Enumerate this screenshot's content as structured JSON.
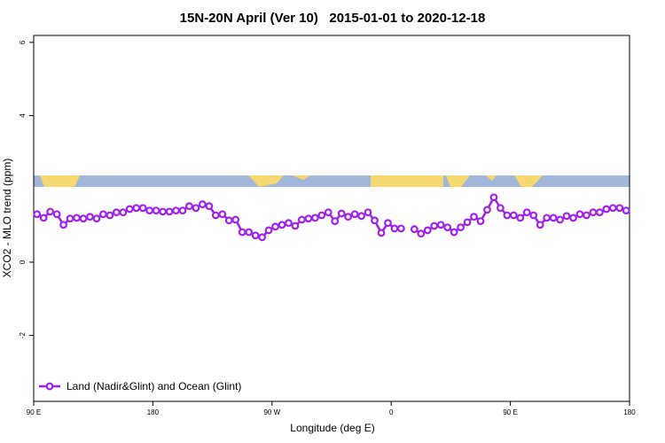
{
  "chart_data": {
    "type": "line",
    "title": "15N-20N April (Ver 10)   2015-01-01 to 2020-12-18",
    "x_label": "Longitude (deg E)",
    "y_label": "XCO2 - MLO trend (ppm)",
    "xlim": [
      90,
      540
    ],
    "ylim": [
      -3.8,
      6.19
    ],
    "xticks": [
      {
        "value": 90,
        "label": "90 E"
      },
      180,
      {
        "value": 270,
        "label": "90 W"
      },
      {
        "value": 360,
        "label": "0"
      },
      {
        "value": 450,
        "label": "90 E"
      },
      {
        "value": 540,
        "label": "180"
      }
    ],
    "yticks": [
      -2,
      0,
      4,
      6
    ],
    "legend_position": "bottom-left",
    "x": [
      92.5,
      97.5,
      102.5,
      107.5,
      112.5,
      117.5,
      122.5,
      127.5,
      132.5,
      137.5,
      142.5,
      147.5,
      152.5,
      157.5,
      162.5,
      167.5,
      172.5,
      177.5,
      182.5,
      187.5,
      192.5,
      197.5,
      202.5,
      207.5,
      212.5,
      217.5,
      222.5,
      227.5,
      232.5,
      237.5,
      242.5,
      247.5,
      252.5,
      257.5,
      262.5,
      267.5,
      272.5,
      277.5,
      282.5,
      287.5,
      292.5,
      297.5,
      302.5,
      307.5,
      312.5,
      317.5,
      322.5,
      327.5,
      332.5,
      337.5,
      342.5,
      347.5,
      352.5,
      357.5,
      362.5,
      367.5,
      372.5,
      377.5,
      382.5,
      387.5,
      392.5,
      397.5,
      402.5,
      407.5,
      412.5,
      417.5,
      422.5,
      427.5,
      432.5,
      437.5,
      442.5,
      447.5,
      452.5,
      457.5,
      462.5,
      467.5,
      472.5,
      477.5,
      482.5,
      487.5,
      492.5,
      497.5,
      502.5,
      507.5,
      512.5,
      517.5,
      522.5,
      527.5,
      532.5,
      537.5
    ],
    "series": [
      {
        "name": "Land (Nadir&Glint) and Ocean (Glint)",
        "color": "#a020f0",
        "values": [
          1.31,
          1.21,
          1.38,
          1.31,
          1.02,
          1.19,
          1.21,
          1.19,
          1.24,
          1.19,
          1.31,
          1.28,
          1.36,
          1.36,
          1.45,
          1.48,
          1.48,
          1.41,
          1.41,
          1.38,
          1.38,
          1.41,
          1.41,
          1.53,
          1.48,
          1.58,
          1.53,
          1.28,
          1.31,
          1.14,
          1.16,
          0.82,
          0.82,
          0.73,
          0.68,
          0.87,
          0.97,
          1.02,
          1.07,
          0.99,
          1.16,
          1.19,
          1.21,
          1.28,
          1.36,
          1.12,
          1.33,
          1.24,
          1.31,
          1.26,
          1.36,
          1.14,
          0.8,
          1.07,
          0.92,
          0.92,
          null,
          0.9,
          0.78,
          0.87,
          0.99,
          1.02,
          0.95,
          0.82,
          0.95,
          1.09,
          1.24,
          1.12,
          1.43,
          1.77,
          1.48,
          1.28,
          1.28,
          1.21,
          1.36,
          1.28,
          1.02,
          1.21,
          1.21,
          1.16,
          1.26,
          1.21,
          1.31,
          1.28,
          1.36,
          1.36,
          1.45,
          1.48,
          1.48,
          1.41
        ]
      }
    ]
  }
}
